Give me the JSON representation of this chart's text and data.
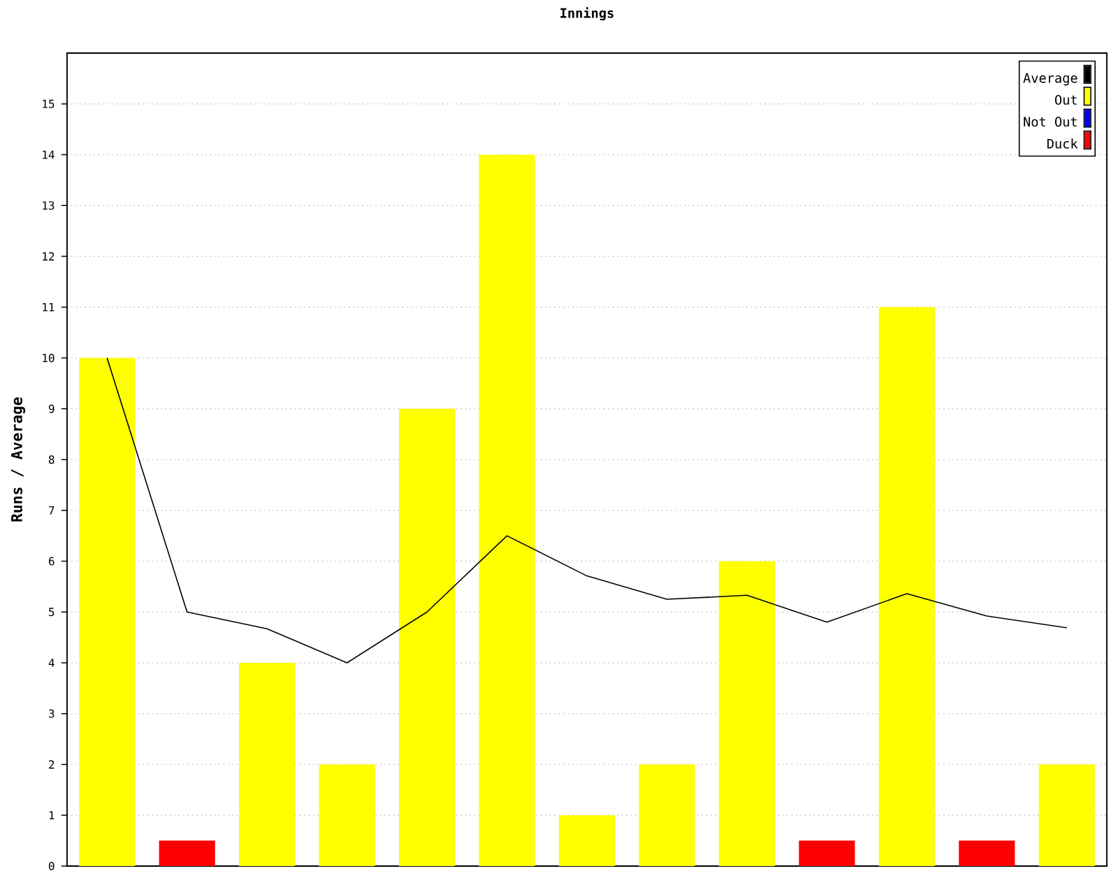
{
  "chart_data": {
    "type": "bar",
    "title": "Innings",
    "ylabel": "Runs / Average",
    "categories": [
      null,
      null,
      null,
      null,
      null,
      null,
      null,
      null,
      null,
      null,
      null,
      null,
      null
    ],
    "series": [
      {
        "name": "Average",
        "type": "line",
        "color": "#000000",
        "values": [
          10,
          5,
          4.67,
          4,
          5,
          6.5,
          5.71,
          5.25,
          5.33,
          4.8,
          5.36,
          4.92,
          4.69
        ]
      },
      {
        "name": "Out",
        "color": "#ffff00",
        "values": [
          10,
          null,
          4,
          2,
          9,
          14,
          1,
          2,
          6,
          null,
          11,
          null,
          2
        ]
      },
      {
        "name": "Not Out",
        "color": "#0000ff",
        "values": [
          null,
          null,
          null,
          null,
          null,
          null,
          null,
          null,
          null,
          null,
          null,
          null,
          null
        ]
      },
      {
        "name": "Duck",
        "color": "#ff0000",
        "values": [
          null,
          0.5,
          null,
          null,
          null,
          null,
          null,
          null,
          null,
          0.5,
          null,
          0.5,
          null
        ]
      }
    ],
    "ylim": [
      0,
      16
    ],
    "yticks": [
      0,
      1,
      2,
      3,
      4,
      5,
      6,
      7,
      8,
      9,
      10,
      11,
      12,
      13,
      14,
      15
    ],
    "grid": "y",
    "legend": "top right",
    "marker": "none",
    "line_style": "solid"
  }
}
